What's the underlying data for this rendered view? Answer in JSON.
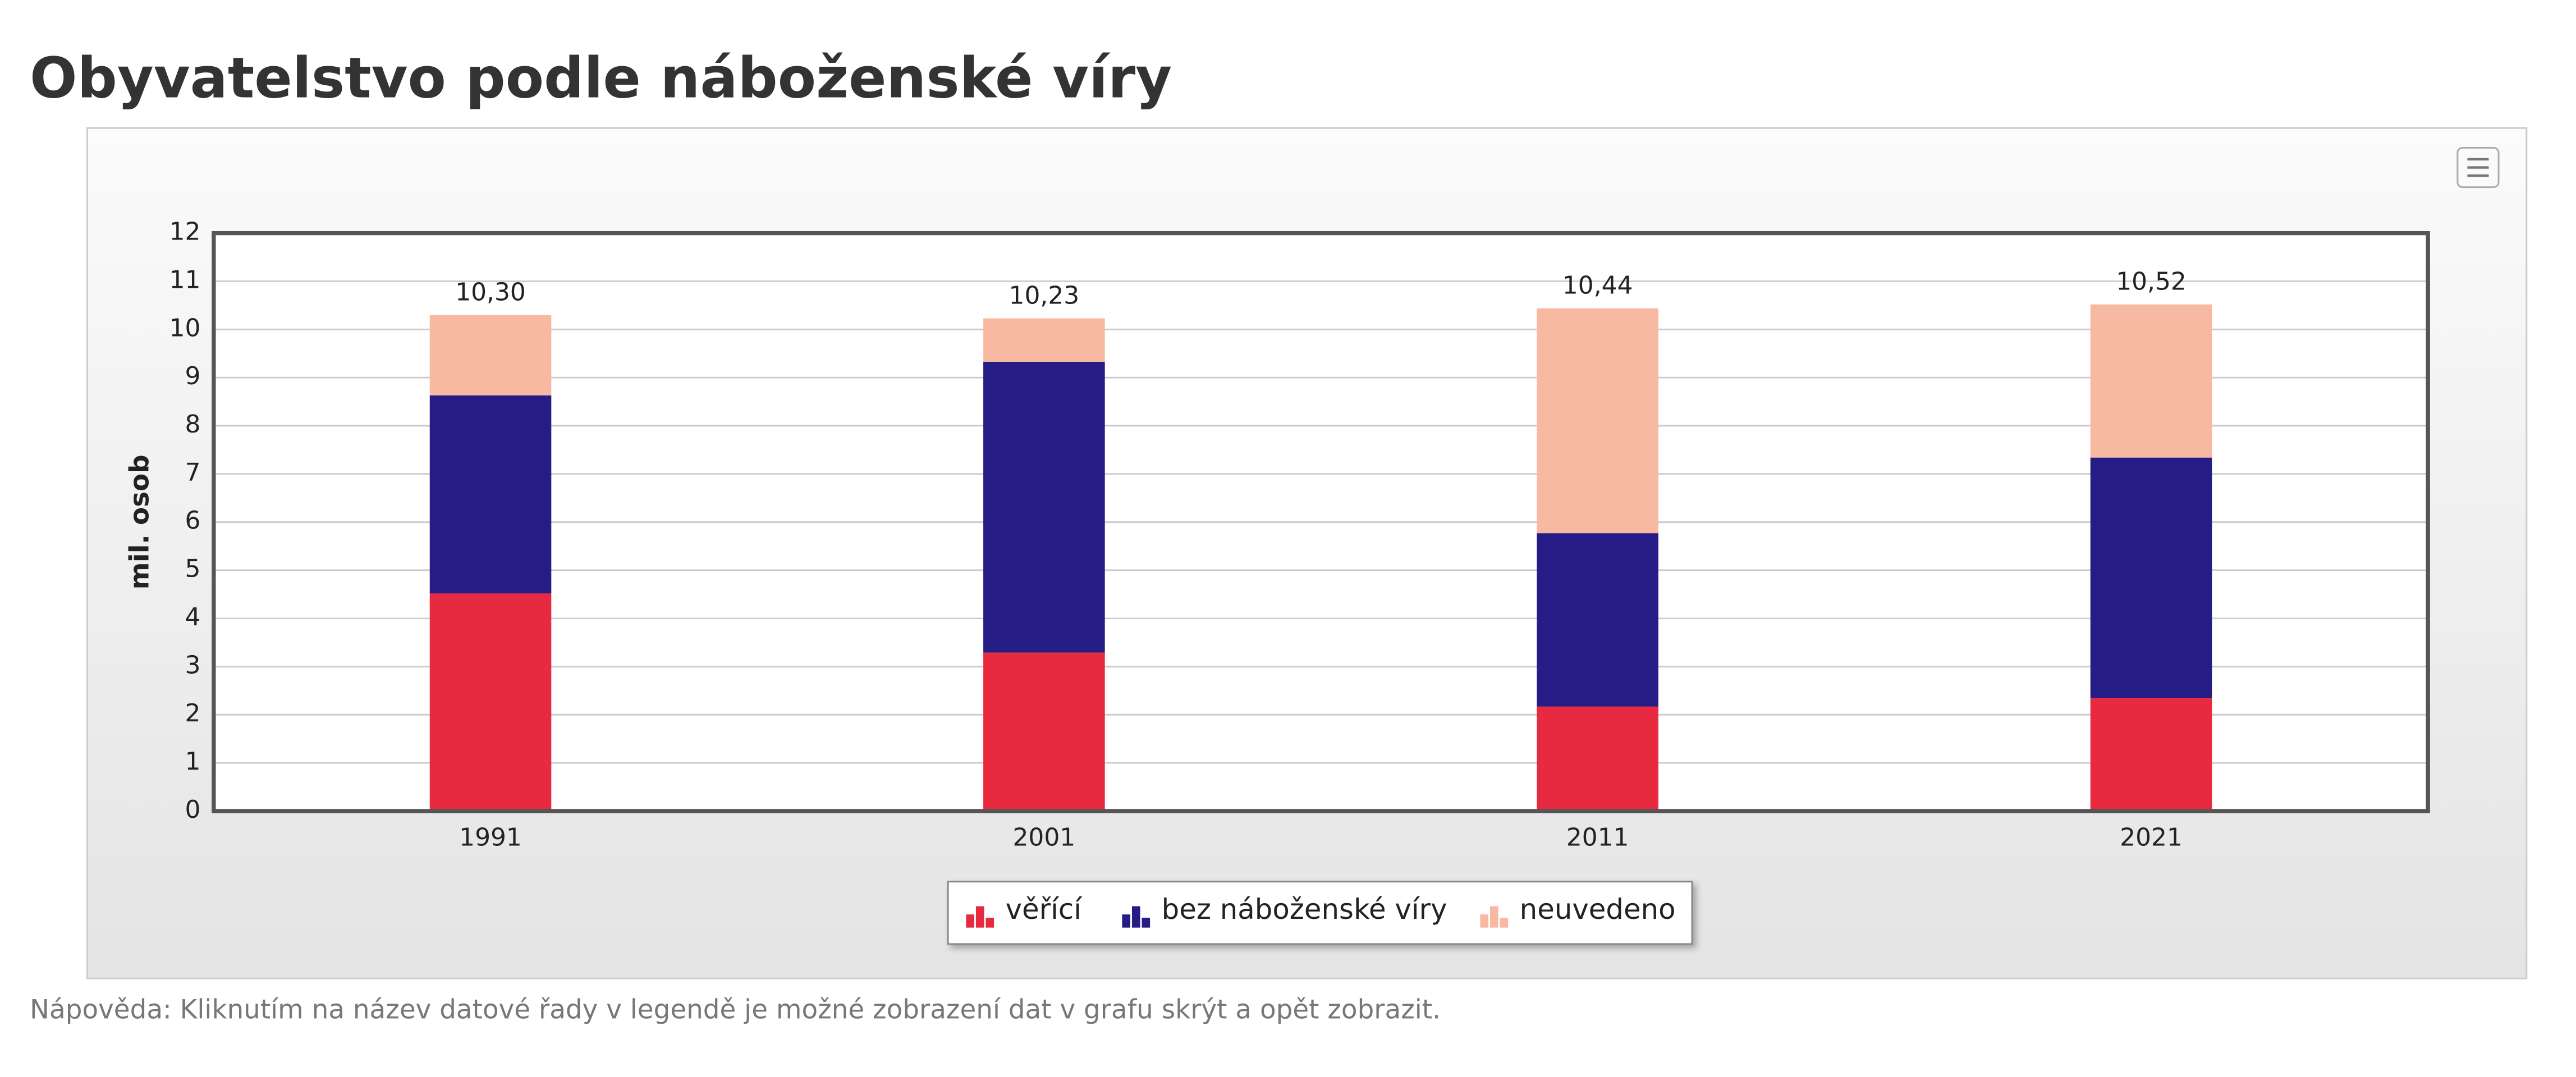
{
  "chart_data": {
    "type": "stacked-bar",
    "title": "Obyvatelstvo podle náboženské víry",
    "y_label": "mil. osob",
    "categories": [
      "1991",
      "2001",
      "2011",
      "2021"
    ],
    "series": [
      {
        "name": "věřící",
        "color": "#e82a40",
        "values": [
          4.52,
          3.29,
          2.17,
          2.35
        ]
      },
      {
        "name": "bez náboženské víry",
        "color": "#251c86",
        "values": [
          4.11,
          6.04,
          3.6,
          4.99
        ]
      },
      {
        "name": "neuvedeno",
        "color": "#f8b9a2",
        "values": [
          1.67,
          0.9,
          4.67,
          3.18
        ]
      }
    ],
    "totals": {
      "values": [
        10.3,
        10.23,
        10.44,
        10.52
      ],
      "value_labels": [
        "10,30",
        "10,23",
        "10,44",
        "10,52"
      ]
    },
    "ylim": [
      0,
      12
    ],
    "yticks": [
      0,
      1,
      2,
      3,
      4,
      5,
      6,
      7,
      8,
      9,
      10,
      11,
      12
    ],
    "grid": true,
    "help_text": "Nápověda: Kliknutím na název datové řady v legendě je možné zobrazení dat v grafu skrýt a opět zobrazit."
  }
}
